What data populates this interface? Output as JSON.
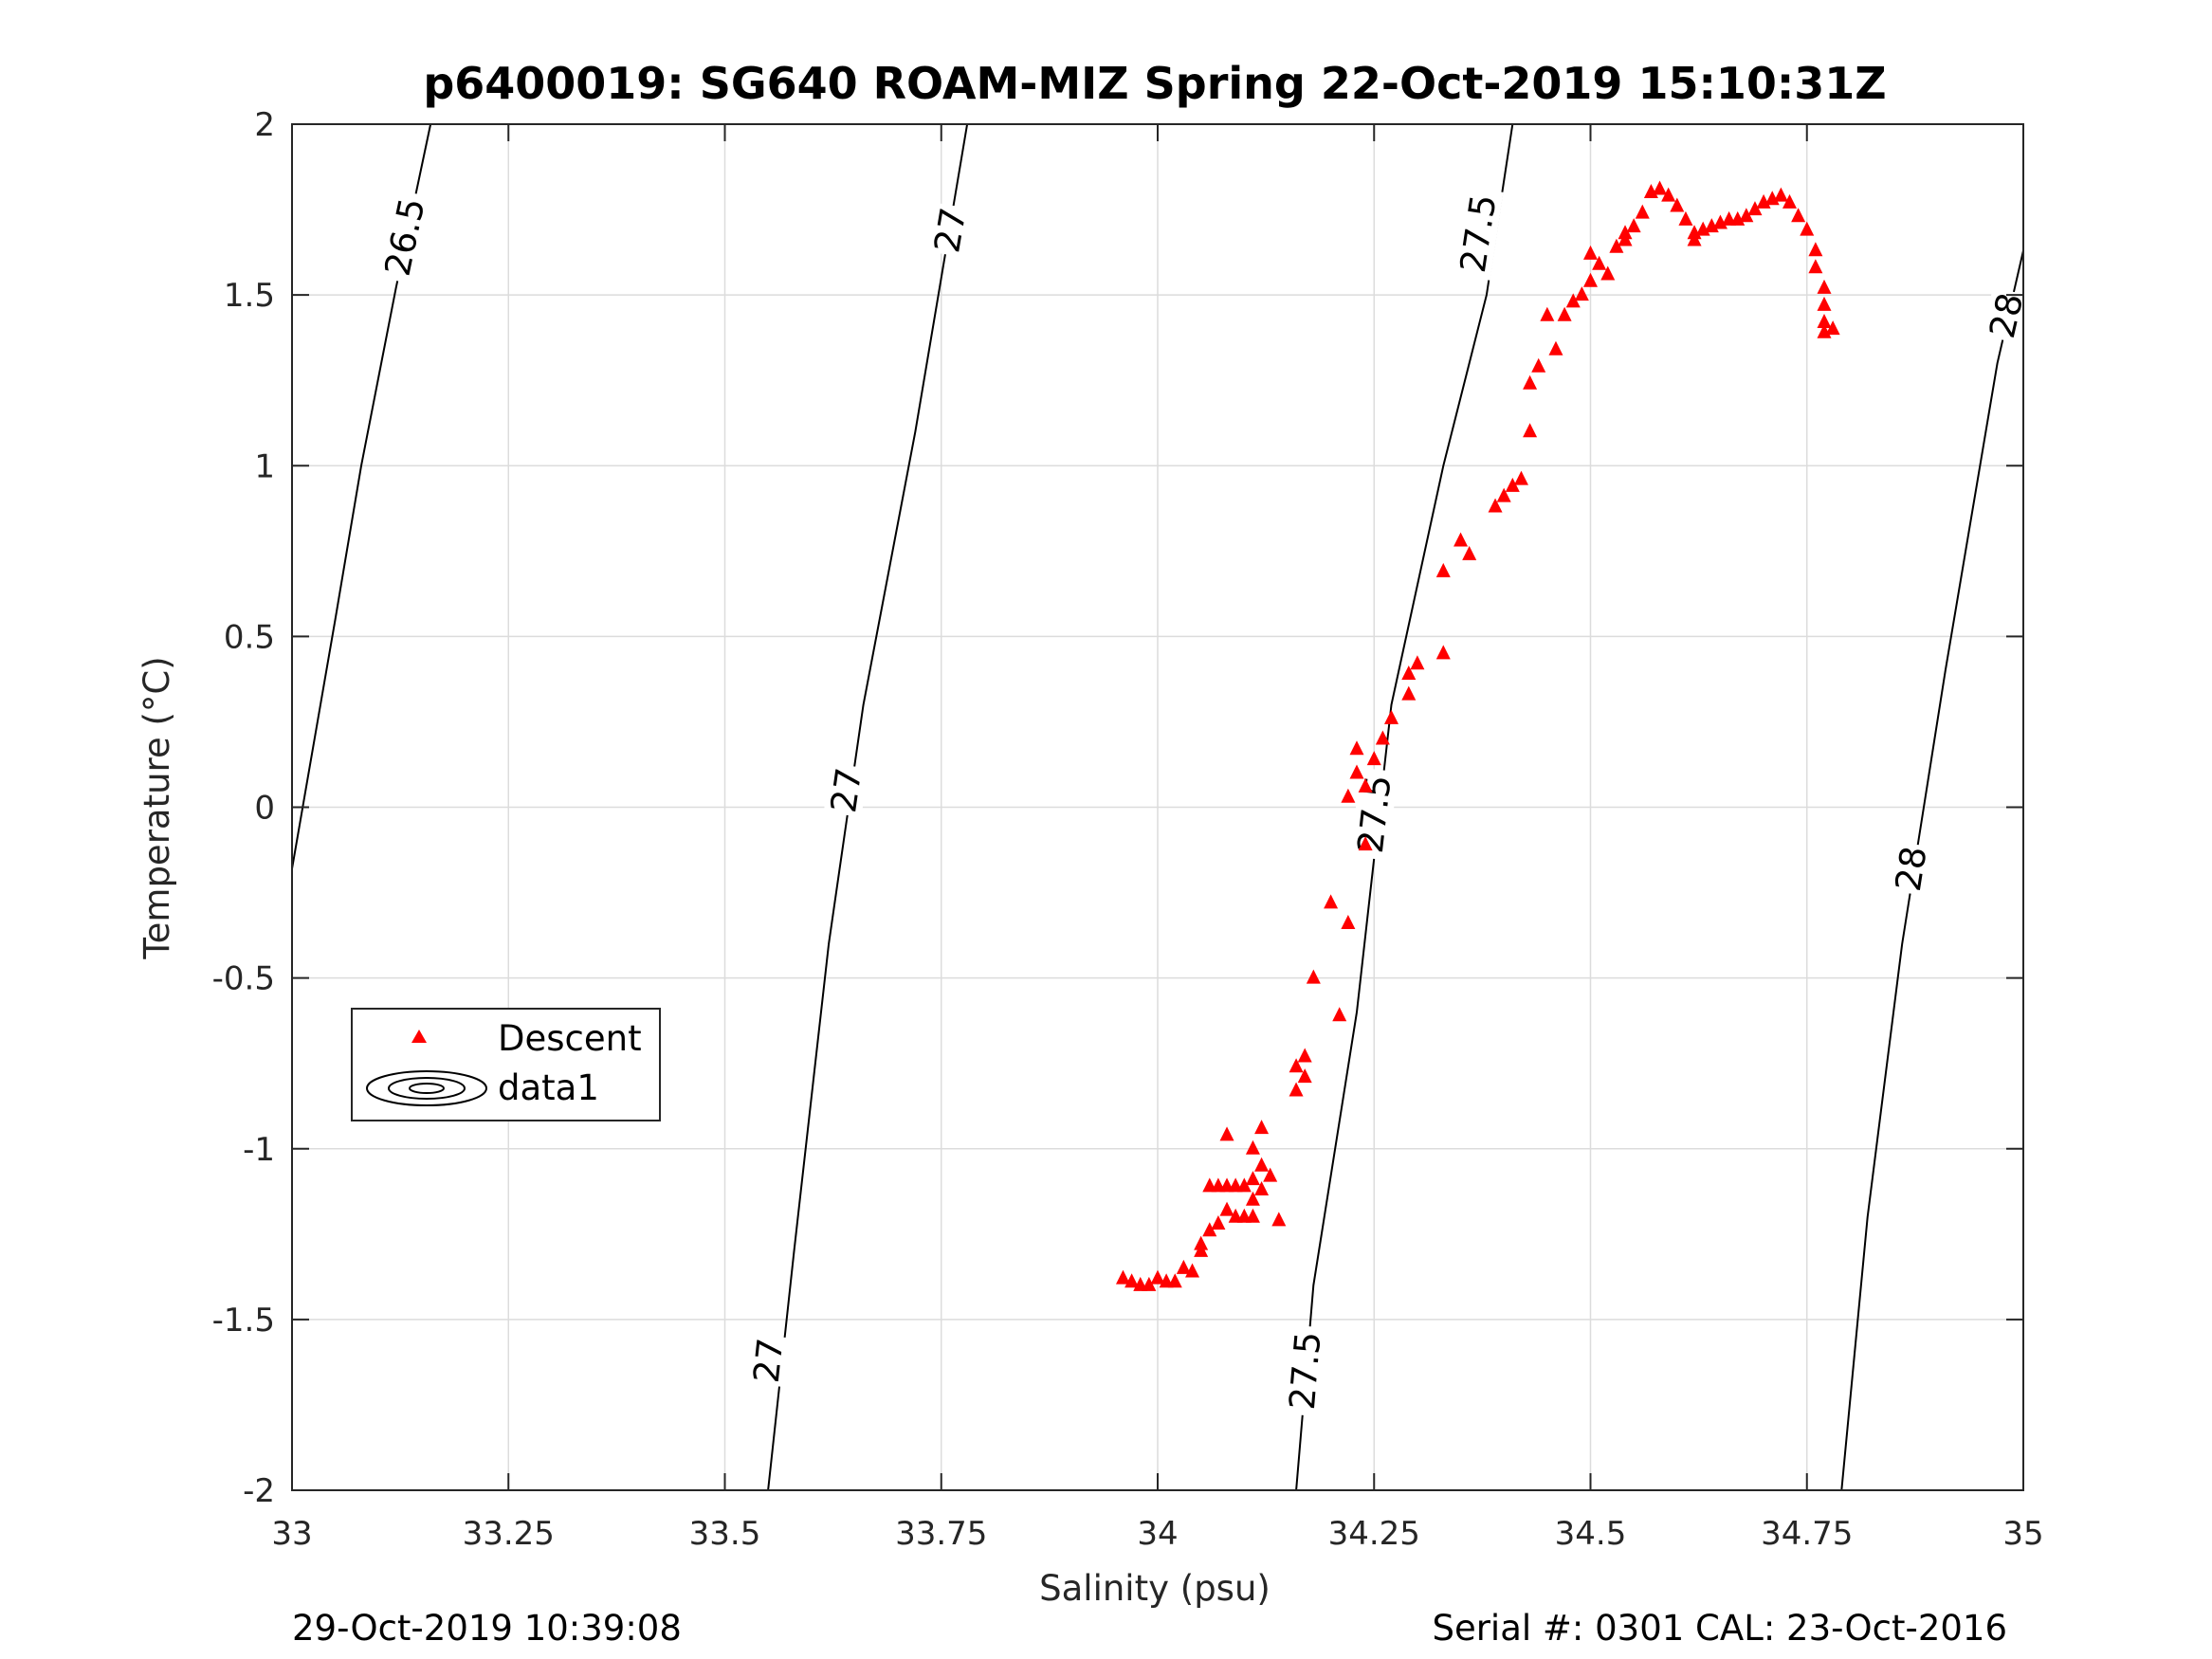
{
  "chart_data": {
    "type": "scatter",
    "title": "p6400019: SG640 ROAM-MIZ Spring 22-Oct-2019 15:10:31Z",
    "xlabel": "Salinity (psu)",
    "ylabel": "Temperature (°C)",
    "xlim": [
      33,
      35
    ],
    "ylim": [
      -2,
      2
    ],
    "x_ticks": [
      "33",
      "33.25",
      "33.5",
      "33.75",
      "34",
      "34.25",
      "34.5",
      "34.75",
      "35"
    ],
    "y_ticks": [
      "2",
      "1.5",
      "1",
      "0.5",
      "0",
      "-0.5",
      "-1",
      "-1.5",
      "-2"
    ],
    "grid": true,
    "legend_position": "left-middle",
    "legend": [
      "Descent",
      "data1"
    ],
    "series": [
      {
        "name": "Descent",
        "color": "#ff0000",
        "marker": "triangle",
        "points": [
          [
            33.96,
            -1.38
          ],
          [
            33.97,
            -1.39
          ],
          [
            33.98,
            -1.4
          ],
          [
            33.99,
            -1.4
          ],
          [
            34.0,
            -1.38
          ],
          [
            34.01,
            -1.39
          ],
          [
            34.02,
            -1.39
          ],
          [
            34.03,
            -1.35
          ],
          [
            34.04,
            -1.36
          ],
          [
            34.05,
            -1.3
          ],
          [
            34.05,
            -1.28
          ],
          [
            34.06,
            -1.24
          ],
          [
            34.07,
            -1.22
          ],
          [
            34.08,
            -1.18
          ],
          [
            34.09,
            -1.2
          ],
          [
            34.1,
            -1.2
          ],
          [
            34.11,
            -1.2
          ],
          [
            34.06,
            -1.11
          ],
          [
            34.07,
            -1.11
          ],
          [
            34.08,
            -1.11
          ],
          [
            34.09,
            -1.11
          ],
          [
            34.1,
            -1.11
          ],
          [
            34.08,
            -0.96
          ],
          [
            34.11,
            -1.09
          ],
          [
            34.12,
            -1.05
          ],
          [
            34.12,
            -1.12
          ],
          [
            34.11,
            -1.15
          ],
          [
            34.13,
            -1.08
          ],
          [
            34.11,
            -1.0
          ],
          [
            34.12,
            -0.94
          ],
          [
            34.14,
            -1.21
          ],
          [
            34.16,
            -0.83
          ],
          [
            34.16,
            -0.76
          ],
          [
            34.17,
            -0.73
          ],
          [
            34.17,
            -0.79
          ],
          [
            34.18,
            -0.5
          ],
          [
            34.2,
            -0.28
          ],
          [
            34.21,
            -0.61
          ],
          [
            34.22,
            -0.34
          ],
          [
            34.22,
            0.03
          ],
          [
            34.23,
            0.1
          ],
          [
            34.24,
            -0.11
          ],
          [
            34.24,
            0.06
          ],
          [
            34.25,
            0.14
          ],
          [
            34.23,
            0.17
          ],
          [
            34.26,
            0.2
          ],
          [
            34.27,
            0.26
          ],
          [
            34.29,
            0.33
          ],
          [
            34.29,
            0.39
          ],
          [
            34.3,
            0.42
          ],
          [
            34.33,
            0.45
          ],
          [
            34.33,
            0.69
          ],
          [
            34.35,
            0.78
          ],
          [
            34.36,
            0.74
          ],
          [
            34.39,
            0.88
          ],
          [
            34.4,
            0.91
          ],
          [
            34.41,
            0.94
          ],
          [
            34.42,
            0.96
          ],
          [
            34.43,
            1.1
          ],
          [
            34.43,
            1.24
          ],
          [
            34.44,
            1.29
          ],
          [
            34.45,
            1.44
          ],
          [
            34.46,
            1.34
          ],
          [
            34.47,
            1.44
          ],
          [
            34.48,
            1.48
          ],
          [
            34.49,
            1.5
          ],
          [
            34.5,
            1.54
          ],
          [
            34.51,
            1.59
          ],
          [
            34.5,
            1.62
          ],
          [
            34.52,
            1.56
          ],
          [
            34.53,
            1.64
          ],
          [
            34.54,
            1.68
          ],
          [
            34.54,
            1.66
          ],
          [
            34.55,
            1.7
          ],
          [
            34.56,
            1.74
          ],
          [
            34.57,
            1.8
          ],
          [
            34.58,
            1.81
          ],
          [
            34.59,
            1.79
          ],
          [
            34.6,
            1.76
          ],
          [
            34.61,
            1.72
          ],
          [
            34.62,
            1.68
          ],
          [
            34.62,
            1.66
          ],
          [
            34.63,
            1.69
          ],
          [
            34.64,
            1.7
          ],
          [
            34.65,
            1.71
          ],
          [
            34.66,
            1.72
          ],
          [
            34.67,
            1.72
          ],
          [
            34.68,
            1.73
          ],
          [
            34.69,
            1.75
          ],
          [
            34.7,
            1.77
          ],
          [
            34.71,
            1.78
          ],
          [
            34.72,
            1.79
          ],
          [
            34.73,
            1.77
          ],
          [
            34.74,
            1.73
          ],
          [
            34.75,
            1.69
          ],
          [
            34.76,
            1.63
          ],
          [
            34.76,
            1.58
          ],
          [
            34.77,
            1.52
          ],
          [
            34.77,
            1.47
          ],
          [
            34.77,
            1.42
          ],
          [
            34.77,
            1.39
          ],
          [
            34.78,
            1.4
          ]
        ]
      },
      {
        "name": "data1",
        "type": "contour",
        "color": "#000000",
        "levels": [
          {
            "value": "26.5",
            "points": [
              [
                33.0,
                -0.18
              ],
              [
                33.05,
                0.55
              ],
              [
                33.08,
                1.0
              ],
              [
                33.12,
                1.52
              ],
              [
                33.16,
                2.0
              ]
            ],
            "labels": [
              [
                33.13,
                1.67
              ]
            ]
          },
          {
            "value": "27",
            "points": [
              [
                33.55,
                -2.0
              ],
              [
                33.58,
                -1.3
              ],
              [
                33.62,
                -0.4
              ],
              [
                33.66,
                0.3
              ],
              [
                33.72,
                1.1
              ],
              [
                33.78,
                2.0
              ]
            ],
            "labels": [
              [
                33.55,
                -1.62
              ],
              [
                33.64,
                0.05
              ],
              [
                33.76,
                1.69
              ]
            ]
          },
          {
            "value": "27.5",
            "points": [
              [
                34.16,
                -2.0
              ],
              [
                34.18,
                -1.4
              ],
              [
                34.23,
                -0.6
              ],
              [
                34.27,
                0.3
              ],
              [
                34.33,
                1.0
              ],
              [
                34.38,
                1.5
              ],
              [
                34.41,
                2.0
              ]
            ],
            "labels": [
              [
                34.17,
                -1.65
              ],
              [
                34.25,
                -0.02
              ],
              [
                34.37,
                1.68
              ]
            ]
          },
          {
            "value": "28",
            "points": [
              [
                34.79,
                -2.0
              ],
              [
                34.82,
                -1.2
              ],
              [
                34.86,
                -0.4
              ],
              [
                34.91,
                0.4
              ],
              [
                34.97,
                1.3
              ],
              [
                35.0,
                1.63
              ]
            ],
            "labels": [
              [
                34.87,
                -0.18
              ],
              [
                34.98,
                1.44
              ]
            ]
          }
        ]
      }
    ]
  },
  "footer": {
    "timestamp": "29-Oct-2019 10:39:08",
    "serial": "Serial #: 0301  CAL: 23-Oct-2016"
  }
}
